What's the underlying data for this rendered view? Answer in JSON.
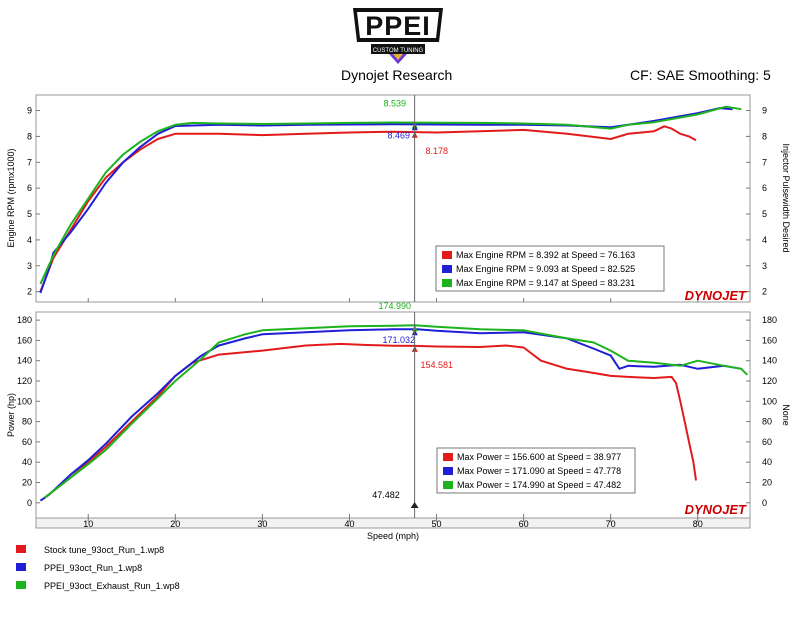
{
  "header": {
    "logo_text": "PPEI",
    "logo_sub": "CUSTOM TUNING",
    "brand": "Dynojet Research",
    "cf_info": "CF: SAE Smoothing: 5",
    "dynojet_mark": "DYNOJET"
  },
  "cursor": {
    "x": 47.482,
    "label": "47.482"
  },
  "colors": {
    "red": "#e31a1c",
    "blue": "#1f1fd6",
    "green": "#1db31d"
  },
  "chart_data": [
    {
      "type": "line",
      "ylabel": "Engine RPM (rpmx1000)",
      "ylabel_right": "Injector Pulsewidth Desired",
      "xlim": [
        4,
        86
      ],
      "ylim": [
        1.6,
        9.6
      ],
      "yticks": [
        2,
        3,
        4,
        5,
        6,
        7,
        8,
        9
      ],
      "grid": false,
      "legend_placement": "bottom-right",
      "series": [
        {
          "name": "Stock tune_93oct_Run_1.wp8",
          "color": "red",
          "x": [
            4.5,
            6,
            8,
            10,
            12,
            14,
            16,
            18,
            20,
            25,
            30,
            35,
            40,
            45,
            50,
            55,
            60,
            65,
            70,
            72,
            75,
            76.16,
            77,
            78,
            79,
            79.8
          ],
          "y": [
            2.0,
            3.3,
            4.4,
            5.5,
            6.4,
            7.0,
            7.5,
            7.9,
            8.1,
            8.1,
            8.05,
            8.1,
            8.15,
            8.18,
            8.15,
            8.2,
            8.25,
            8.1,
            7.9,
            8.1,
            8.2,
            8.39,
            8.3,
            8.1,
            8.0,
            7.85
          ]
        },
        {
          "name": "PPEI_93oct_Run_1.wp8",
          "color": "blue",
          "x": [
            4.5,
            5.5,
            6,
            8,
            10,
            12,
            14,
            16,
            18,
            20,
            25,
            30,
            35,
            40,
            45,
            50,
            55,
            60,
            65,
            70,
            72,
            75,
            80,
            82.525,
            84
          ],
          "y": [
            1.95,
            2.9,
            3.5,
            4.3,
            5.2,
            6.2,
            7.0,
            7.6,
            8.1,
            8.4,
            8.45,
            8.42,
            8.45,
            8.46,
            8.469,
            8.46,
            8.45,
            8.45,
            8.42,
            8.35,
            8.45,
            8.6,
            8.9,
            9.093,
            9.05
          ]
        },
        {
          "name": "PPEI_93oct_Exhaust_Run_1.wp8",
          "color": "green",
          "x": [
            4.5,
            6,
            8,
            10,
            12,
            14,
            16,
            18,
            20,
            22,
            25,
            30,
            35,
            40,
            45,
            50,
            55,
            60,
            65,
            70,
            72,
            75,
            80,
            83.231,
            85
          ],
          "y": [
            2.3,
            3.4,
            4.6,
            5.6,
            6.6,
            7.3,
            7.8,
            8.2,
            8.45,
            8.52,
            8.5,
            8.48,
            8.5,
            8.52,
            8.539,
            8.53,
            8.52,
            8.5,
            8.45,
            8.3,
            8.45,
            8.55,
            8.85,
            9.147,
            9.05
          ]
        }
      ],
      "annotations": [
        {
          "text": "8.539",
          "color": "green",
          "x": 47.5,
          "y": 8.539
        },
        {
          "text": "8.469",
          "color": "blue",
          "x": 47.5,
          "y": 8.469
        },
        {
          "text": "8.178",
          "color": "red",
          "x": 47.5,
          "y": 8.178
        }
      ],
      "legend": [
        {
          "color": "red",
          "text": "Max Engine RPM = 8.392 at Speed = 76.163"
        },
        {
          "color": "blue",
          "text": "Max Engine RPM = 9.093 at Speed = 82.525"
        },
        {
          "color": "green",
          "text": "Max Engine RPM = 9.147 at Speed = 83.231"
        }
      ]
    },
    {
      "type": "line",
      "ylabel": "Power (hp)",
      "ylabel_right": "None",
      "xlabel": "Speed (mph)",
      "xlim": [
        4,
        86
      ],
      "ylim": [
        -15,
        188
      ],
      "yticks": [
        0,
        20,
        40,
        60,
        80,
        100,
        120,
        140,
        160,
        180
      ],
      "xticks": [
        10,
        20,
        30,
        40,
        50,
        60,
        70,
        80
      ],
      "grid": false,
      "legend_placement": "bottom-right",
      "series": [
        {
          "name": "Stock tune_93oct_Run_1.wp8",
          "color": "red",
          "x": [
            5,
            8,
            10,
            12,
            15,
            18,
            20,
            22,
            25,
            30,
            35,
            38.977,
            42,
            45,
            47.5,
            50,
            55,
            58,
            60,
            62,
            65,
            68,
            70,
            72,
            75,
            77,
            77.5,
            78,
            78.5,
            79,
            79.5,
            79.8
          ],
          "y": [
            5,
            25,
            40,
            55,
            80,
            105,
            125,
            138,
            146,
            150,
            155,
            156.6,
            155.5,
            154.8,
            154.58,
            154,
            153.5,
            155,
            153,
            140,
            132,
            128,
            125,
            124,
            123,
            124,
            118,
            100,
            80,
            60,
            40,
            22
          ]
        },
        {
          "name": "PPEI_93oct_Run_1.wp8",
          "color": "blue",
          "x": [
            4.5,
            5.5,
            8,
            10,
            12,
            15,
            18,
            20,
            23,
            25,
            28,
            30,
            35,
            40,
            45,
            47.778,
            50,
            55,
            60,
            65,
            68,
            70,
            71,
            72,
            75,
            78,
            80,
            83,
            85
          ],
          "y": [
            2,
            8,
            28,
            42,
            58,
            85,
            108,
            125,
            145,
            155,
            162,
            166,
            168,
            170,
            171,
            171.09,
            169.5,
            167,
            168,
            162,
            152,
            145,
            132,
            135,
            134,
            136,
            132,
            135,
            132
          ]
        },
        {
          "name": "PPEI_93oct_Exhaust_Run_1.wp8",
          "color": "green",
          "x": [
            5,
            8,
            10,
            12,
            15,
            18,
            20,
            23,
            25,
            28,
            30,
            35,
            40,
            45,
            47.482,
            50,
            55,
            60,
            65,
            68,
            70,
            72,
            75,
            78,
            80,
            83,
            85,
            85.7
          ],
          "y": [
            5,
            25,
            38,
            52,
            78,
            103,
            120,
            142,
            158,
            166,
            170,
            172,
            174,
            174.5,
            174.99,
            173.5,
            171,
            170,
            162,
            158,
            150,
            140,
            138,
            135,
            140,
            135,
            132,
            126
          ]
        }
      ],
      "annotations": [
        {
          "text": "174.990",
          "color": "green",
          "x": 47.5,
          "y": 174.99
        },
        {
          "text": "171.032",
          "color": "blue",
          "x": 47.5,
          "y": 171.032
        },
        {
          "text": "154.581",
          "color": "red",
          "x": 47.5,
          "y": 154.581
        }
      ],
      "legend": [
        {
          "color": "red",
          "text": "Max Power = 156.600 at Speed = 38.977"
        },
        {
          "color": "blue",
          "text": "Max Power = 171.090 at Speed = 47.778"
        },
        {
          "color": "green",
          "text": "Max Power = 174.990 at Speed = 47.482"
        }
      ]
    }
  ],
  "files": [
    {
      "color": "red",
      "name": "Stock tune_93oct_Run_1.wp8"
    },
    {
      "color": "blue",
      "name": "PPEI_93oct_Run_1.wp8"
    },
    {
      "color": "green",
      "name": "PPEI_93oct_Exhaust_Run_1.wp8"
    }
  ]
}
